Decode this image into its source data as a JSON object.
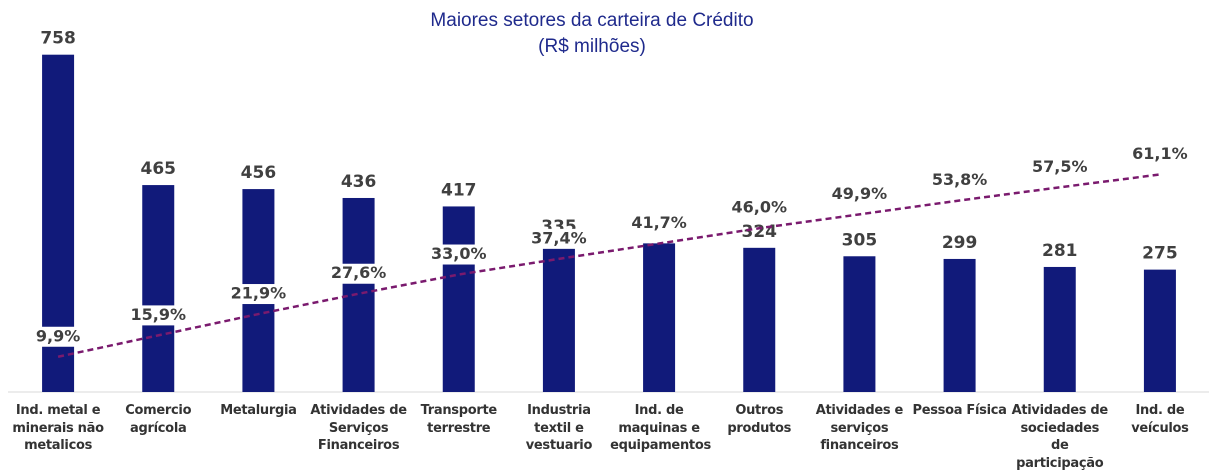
{
  "chart_data": {
    "type": "bar",
    "title": "Maiores setores da carteira de Crédito",
    "subtitle": "(R$ milhões)",
    "categories": [
      "Ind. metal e minerais não metalicos",
      "Comercio agrícola",
      "Metalurgia",
      "Atividades de Serviços Financeiros",
      "Transporte terrestre",
      "Industria textil e vestuario",
      "Ind. de maquinas e equipamentos",
      "Outros produtos",
      "Atividades e serviços financeiros",
      "Pessoa Física",
      "Atividades de sociedades de participação",
      "Ind. de veículos"
    ],
    "series": [
      {
        "name": "Carteira",
        "color": "#111a7a",
        "values": [
          758,
          465,
          456,
          436,
          417,
          335,
          334,
          324,
          305,
          299,
          281,
          275
        ]
      },
      {
        "name": "Acumulado",
        "type": "line",
        "axis": "y2",
        "color": "#7a1a6e",
        "values": [
          9.9,
          15.9,
          21.9,
          27.6,
          33.0,
          37.4,
          41.7,
          46.0,
          49.9,
          53.8,
          57.5,
          61.1
        ],
        "value_labels": [
          "9,9%",
          "15,9%",
          "21,9%",
          "27,6%",
          "33,0%",
          "37,4%",
          "41,7%",
          "46,0%",
          "49,9%",
          "53,8%",
          "57,5%",
          "61,1%"
        ]
      }
    ],
    "ylim": [
      0,
      800
    ],
    "y2lim": [
      0,
      100
    ]
  }
}
